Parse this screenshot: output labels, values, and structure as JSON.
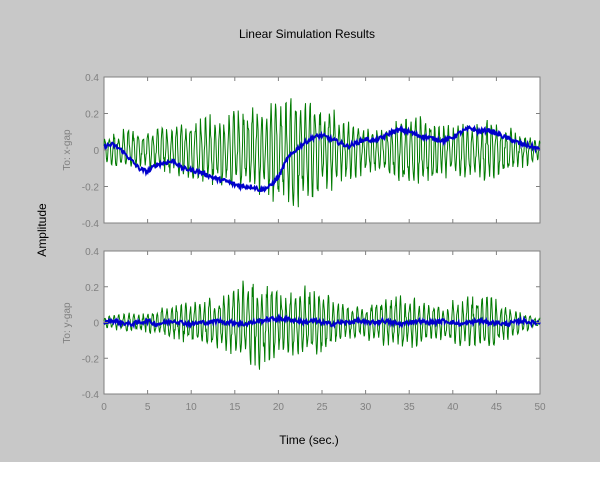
{
  "chart_data": {
    "type": "line",
    "title": "Linear Simulation Results",
    "xlabel": "Time (sec.)",
    "ylabel": "Amplitude",
    "xlim": [
      0,
      50
    ],
    "xticks": [
      0,
      5,
      10,
      15,
      20,
      25,
      30,
      35,
      40,
      45,
      50
    ],
    "colors": {
      "figure_bg": "#c8c8c8",
      "axes_bg": "#ffffff",
      "axis": "#808080",
      "input": "#007a00",
      "response": "#0000cc"
    },
    "panels": [
      {
        "label": "To: x-gap",
        "ylim": [
          -0.4,
          0.4
        ],
        "yticks": [
          -0.4,
          -0.2,
          0,
          0.2,
          0.4
        ],
        "series": [
          {
            "role": "input",
            "color": "#007a00",
            "x": [
              0,
              1,
              2,
              3,
              4,
              5,
              6,
              7,
              8,
              9,
              10,
              11,
              12,
              13,
              14,
              15,
              16,
              17,
              18,
              19,
              20,
              21,
              22,
              23,
              24,
              25,
              26,
              27,
              28,
              29,
              30,
              31,
              32,
              33,
              34,
              35,
              36,
              37,
              38,
              39,
              40,
              41,
              42,
              43,
              44,
              45,
              46,
              47,
              48,
              49,
              50
            ],
            "envelope": [
              0.06,
              0.1,
              0.12,
              0.12,
              0.11,
              0.1,
              0.12,
              0.14,
              0.15,
              0.16,
              0.18,
              0.19,
              0.2,
              0.2,
              0.22,
              0.24,
              0.25,
              0.25,
              0.26,
              0.28,
              0.3,
              0.31,
              0.32,
              0.31,
              0.3,
              0.27,
              0.24,
              0.2,
              0.18,
              0.16,
              0.14,
              0.13,
              0.14,
              0.16,
              0.18,
              0.2,
              0.2,
              0.19,
              0.18,
              0.16,
              0.15,
              0.15,
              0.16,
              0.17,
              0.18,
              0.16,
              0.14,
              0.12,
              0.1,
              0.08,
              0.06
            ],
            "period": 0.55
          },
          {
            "role": "response",
            "color": "#0000cc",
            "x": [
              0,
              1,
              2,
              3,
              4,
              5,
              6,
              7,
              8,
              9,
              10,
              11,
              12,
              13,
              14,
              15,
              16,
              17,
              18,
              19,
              20,
              21,
              22,
              23,
              24,
              25,
              26,
              27,
              28,
              29,
              30,
              31,
              32,
              33,
              34,
              35,
              36,
              37,
              38,
              39,
              40,
              41,
              42,
              43,
              44,
              45,
              46,
              47,
              48,
              49,
              50
            ],
            "y": [
              0.02,
              0.03,
              0.0,
              -0.05,
              -0.1,
              -0.12,
              -0.08,
              -0.07,
              -0.06,
              -0.1,
              -0.11,
              -0.12,
              -0.14,
              -0.16,
              -0.17,
              -0.19,
              -0.2,
              -0.2,
              -0.22,
              -0.2,
              -0.15,
              -0.05,
              0.0,
              0.04,
              0.07,
              0.08,
              0.06,
              0.04,
              0.02,
              0.04,
              0.06,
              0.05,
              0.07,
              0.1,
              0.11,
              0.1,
              0.08,
              0.07,
              0.06,
              0.05,
              0.07,
              0.1,
              0.12,
              0.1,
              0.11,
              0.09,
              0.07,
              0.05,
              0.03,
              0.02,
              0.0
            ]
          }
        ]
      },
      {
        "label": "To: y-gap",
        "ylim": [
          -0.4,
          0.4
        ],
        "yticks": [
          -0.4,
          -0.2,
          0,
          0.2,
          0.4
        ],
        "series": [
          {
            "role": "input",
            "color": "#007a00",
            "x": [
              0,
              1,
              2,
              3,
              4,
              5,
              6,
              7,
              8,
              9,
              10,
              11,
              12,
              13,
              14,
              15,
              16,
              17,
              18,
              19,
              20,
              21,
              22,
              23,
              24,
              25,
              26,
              27,
              28,
              29,
              30,
              31,
              32,
              33,
              34,
              35,
              36,
              37,
              38,
              39,
              40,
              41,
              42,
              43,
              44,
              45,
              46,
              47,
              48,
              49,
              50
            ],
            "envelope": [
              0.03,
              0.04,
              0.05,
              0.06,
              0.05,
              0.06,
              0.08,
              0.1,
              0.1,
              0.11,
              0.12,
              0.13,
              0.14,
              0.16,
              0.18,
              0.2,
              0.24,
              0.28,
              0.27,
              0.24,
              0.18,
              0.18,
              0.2,
              0.22,
              0.21,
              0.18,
              0.15,
              0.12,
              0.1,
              0.09,
              0.1,
              0.12,
              0.14,
              0.15,
              0.16,
              0.15,
              0.14,
              0.12,
              0.1,
              0.11,
              0.13,
              0.15,
              0.16,
              0.17,
              0.16,
              0.14,
              0.11,
              0.08,
              0.06,
              0.04,
              0.03
            ],
            "period": 0.55
          },
          {
            "role": "response",
            "color": "#0000cc",
            "x": [
              0,
              1,
              2,
              3,
              4,
              5,
              6,
              7,
              8,
              9,
              10,
              11,
              12,
              13,
              14,
              15,
              16,
              17,
              18,
              19,
              20,
              21,
              22,
              23,
              24,
              25,
              26,
              27,
              28,
              29,
              30,
              31,
              32,
              33,
              34,
              35,
              36,
              37,
              38,
              39,
              40,
              41,
              42,
              43,
              44,
              45,
              46,
              47,
              48,
              49,
              50
            ],
            "y": [
              0.0,
              0.01,
              0.0,
              -0.01,
              0.0,
              0.01,
              -0.01,
              0.0,
              0.01,
              0.0,
              -0.01,
              0.0,
              0.0,
              0.01,
              0.0,
              0.0,
              -0.01,
              0.0,
              0.01,
              0.02,
              0.02,
              0.02,
              0.01,
              0.0,
              0.01,
              0.0,
              -0.01,
              0.0,
              0.0,
              0.01,
              0.0,
              0.0,
              0.01,
              0.0,
              -0.01,
              0.0,
              0.01,
              0.0,
              0.0,
              0.01,
              0.0,
              -0.01,
              0.0,
              0.01,
              0.0,
              0.0,
              -0.01,
              0.0,
              0.01,
              0.0,
              0.0
            ]
          }
        ]
      }
    ]
  }
}
